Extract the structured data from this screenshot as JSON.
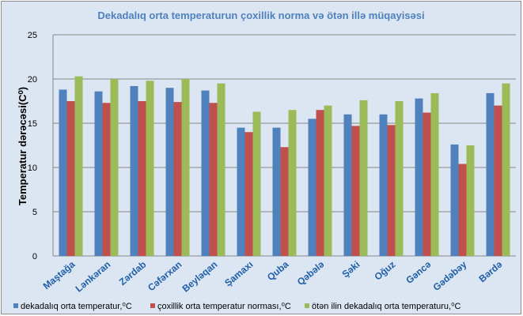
{
  "chart_data": {
    "type": "bar",
    "title": "Dekadalıq orta temperaturun çoxillik   norma və ötən illə müqayisəsi",
    "xlabel": "",
    "ylabel": "Temperatur dərəcəsi(C⁰)",
    "ylim": [
      0,
      25
    ],
    "yticks": [
      "0",
      "5",
      "10",
      "15",
      "20",
      "25"
    ],
    "grid": true,
    "legend_position": "bottom",
    "categories": [
      "Maştağa",
      "Lənkəran",
      "Zərdab",
      "Cəfərxan",
      "Beyləqan",
      "Şamaxı",
      "Quba",
      "Qəbələ",
      "Şəki",
      "Oğuz",
      "Gəncə",
      "Gədəbəy",
      "Bərdə"
    ],
    "series": [
      {
        "name": "dekadalıq orta temperatur,⁰C",
        "color": "#4f81bd",
        "values": [
          18.8,
          18.6,
          19.2,
          19.0,
          18.7,
          14.5,
          14.5,
          15.5,
          16.0,
          16.0,
          17.8,
          12.6,
          18.4
        ]
      },
      {
        "name": "çoxillik orta temperatur norması,⁰C",
        "color": "#c0504d",
        "values": [
          17.5,
          17.3,
          17.5,
          17.4,
          17.3,
          14.0,
          12.3,
          16.5,
          14.7,
          14.8,
          16.2,
          10.4,
          17.0
        ]
      },
      {
        "name": "ötən ilin dekadalıq orta temperaturu,⁰C",
        "color": "#9bbb59",
        "values": [
          20.3,
          20.0,
          19.8,
          20.0,
          19.5,
          16.3,
          16.5,
          17.0,
          17.6,
          17.5,
          18.4,
          12.5,
          19.5
        ]
      }
    ]
  }
}
